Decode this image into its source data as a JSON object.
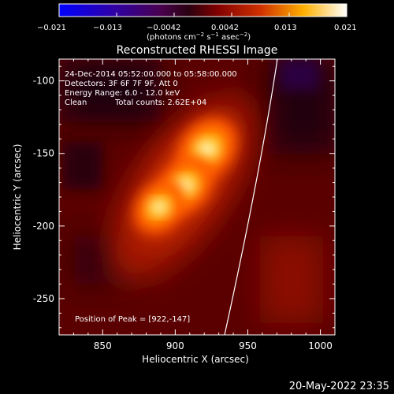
{
  "colorbar": {
    "ticks": [
      "−0.021",
      "−0.013",
      "−0.0042",
      "0.0042",
      "0.013",
      "0.021"
    ],
    "units_main": "(photons cm",
    "units_sup1": "−2",
    "units_mid1": " s",
    "units_sup2": "−1",
    "units_mid2": " asec",
    "units_sup3": "−2",
    "units_end": ")"
  },
  "title": "Reconstructed RHESSI Image",
  "info": {
    "line1": "24-Dec-2014 05:52:00.000 to 05:58:00.000",
    "line2": "Detectors: 3F 6F 7F 9F, Att 0",
    "line3": "Energy Range: 6.0 - 12.0 keV",
    "line4_left": "Clean",
    "line4_right": "Total counts: 2.62E+04",
    "peak": "Position of Peak = [922,-147]"
  },
  "axes": {
    "xlabel": "Heliocentric X (arcsec)",
    "ylabel": "Heliocentric Y (arcsec)",
    "xticks": [
      850,
      900,
      950,
      1000
    ],
    "yticks": [
      -100,
      -150,
      -200,
      -250
    ],
    "xlim": [
      820,
      1010
    ],
    "ylim": [
      -275,
      -85
    ]
  },
  "sources": [
    {
      "x": 922,
      "y": -147,
      "strength": 1.0
    },
    {
      "x": 907,
      "y": -172,
      "strength": 0.9
    },
    {
      "x": 889,
      "y": -187,
      "strength": 0.8
    }
  ],
  "limb_color": "#ffffff",
  "timestamp": "20-May-2022 23:35"
}
